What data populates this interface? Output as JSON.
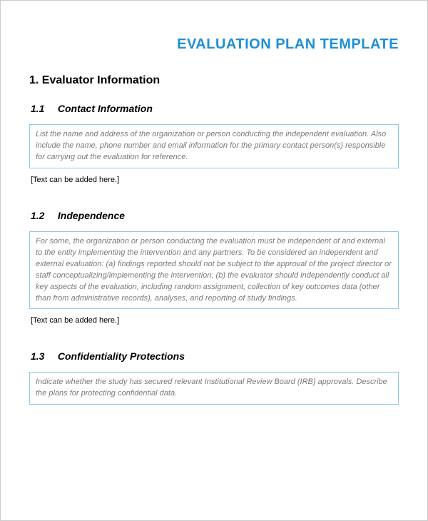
{
  "colors": {
    "title_color": "#1f8fd4",
    "box_border": "#8fc7e8",
    "box_text": "#7a7a7a",
    "heading_color": "#000000",
    "body_text": "#000000"
  },
  "typography": {
    "title_fontsize": 20,
    "section_fontsize": 16,
    "subsection_fontsize": 14,
    "body_fontsize": 11
  },
  "document": {
    "title": "EVALUATION PLAN TEMPLATE",
    "section_number": "1.",
    "section_title": "Evaluator Information",
    "subsections": [
      {
        "number": "1.1",
        "title": "Contact Information",
        "box_text": "List the name and address of the organization or person conducting the independent evaluation. Also include the name, phone number and email information for the primary contact person(s) responsible for carrying out the evaluation for reference.",
        "placeholder": "[Text can be added here.]"
      },
      {
        "number": "1.2",
        "title": "Independence",
        "box_text": "For some, the organization or person conducting the evaluation must be independent of and external to the entity implementing the intervention and any partners.  To be considered an independent and external evaluation: (a) findings reported should not be subject to the approval of the project director or staff conceptualizing/implementing the intervention; (b) the evaluator should independently conduct all key aspects of the evaluation, including random assignment, collection of key outcomes data (other than from administrative records), analyses, and reporting of study findings.",
        "placeholder": "[Text can be added here.]"
      },
      {
        "number": "1.3",
        "title": "Confidentiality Protections",
        "box_text": "Indicate whether the study has secured relevant Institutional Review Board (IRB) approvals. Describe the plans for protecting confidential data.",
        "placeholder": ""
      }
    ]
  }
}
